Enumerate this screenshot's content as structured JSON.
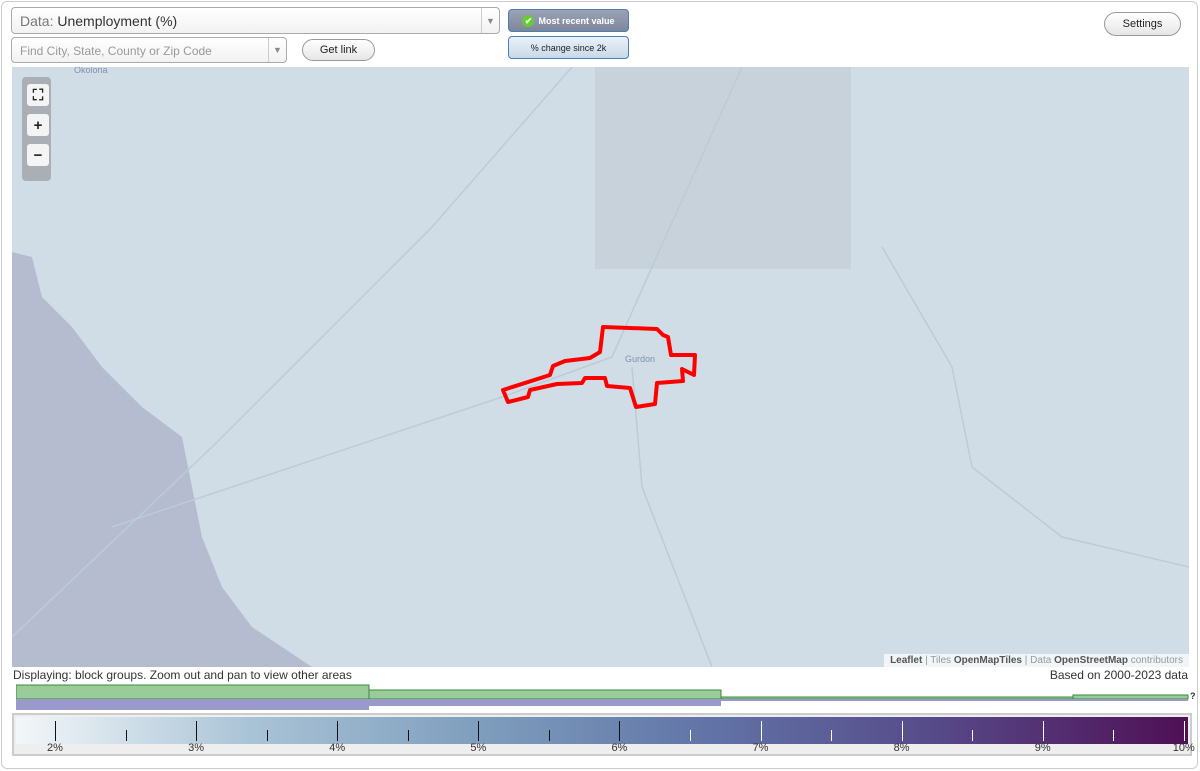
{
  "controls": {
    "data_prefix": "Data:",
    "data_value": "Unemployment (%)",
    "find_placeholder": "Find City, State, County or Zip Code",
    "get_link": "Get link",
    "settings": "Settings",
    "mode_recent": "Most recent value",
    "mode_change": "% change since 2k",
    "mode_selected": "Most recent value"
  },
  "map": {
    "labels": {
      "okolona": "Okolona",
      "gurdon": "Gurdon"
    },
    "attribution": {
      "leaflet": "Leaflet",
      "tiles_prefix": "Tiles",
      "tiles": "OpenMapTiles",
      "data_prefix": "Data",
      "data": "OpenStreetMap",
      "suffix": "contributors"
    },
    "highlight_color": "#ff0000",
    "zoom_icons": [
      "fullscreen-icon",
      "plus-icon",
      "minus-icon"
    ]
  },
  "status": {
    "displaying": "Displaying: block groups. Zoom out and pan to view other areas",
    "based_on": "Based on 2000-2023 data"
  },
  "histogram": {
    "unknown_label": "?",
    "green_color": "#99cc99",
    "purple_color": "#9999cc"
  },
  "legend": {
    "ticks": [
      "2%",
      "3%",
      "4%",
      "5%",
      "6%",
      "7%",
      "8%",
      "9%",
      "10%"
    ],
    "min_color": "#f3f7f9",
    "max_color": "#4f0f55"
  }
}
